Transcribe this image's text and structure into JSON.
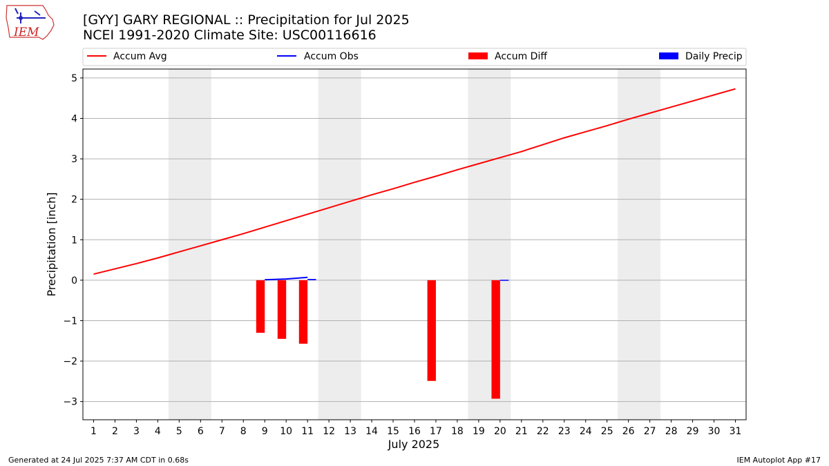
{
  "header": {
    "title_line1": "[GYY] GARY REGIONAL :: Precipitation for Jul 2025",
    "title_line2": "NCEI 1991-2020 Climate Site: USC00116616"
  },
  "logo": {
    "text": "IEM"
  },
  "footer": {
    "left": "Generated at 24 Jul 2025 7:37 AM CDT in 0.68s",
    "right": "IEM Autoplot App #17"
  },
  "colors": {
    "avg": "#ff0000",
    "obs": "#0000ff",
    "diff": "#ff0000",
    "daily": "#0000ff",
    "weekend": "#ededed",
    "grid": "#b0b0b0"
  },
  "chart_data": {
    "type": "bar",
    "xlabel": "July 2025",
    "ylabel": "Precipitation [inch]",
    "xlim": [
      0.5,
      31.5
    ],
    "ylim": [
      -3.45,
      5.22
    ],
    "xticks": [
      "1",
      "2",
      "3",
      "4",
      "5",
      "6",
      "7",
      "8",
      "9",
      "10",
      "11",
      "12",
      "13",
      "14",
      "15",
      "16",
      "17",
      "18",
      "19",
      "20",
      "21",
      "22",
      "23",
      "24",
      "25",
      "26",
      "27",
      "28",
      "29",
      "30",
      "31"
    ],
    "yticks": [
      {
        "v": 5,
        "label": "5"
      },
      {
        "v": 4,
        "label": "4"
      },
      {
        "v": 3,
        "label": "3"
      },
      {
        "v": 2,
        "label": "2"
      },
      {
        "v": 1,
        "label": "1"
      },
      {
        "v": 0,
        "label": "0"
      },
      {
        "v": -1,
        "label": "−1"
      },
      {
        "v": -2,
        "label": "−2"
      },
      {
        "v": -3,
        "label": "−3"
      }
    ],
    "weekend_spans": [
      [
        4.5,
        6.5
      ],
      [
        11.5,
        13.5
      ],
      [
        18.5,
        20.5
      ],
      [
        25.5,
        27.5
      ]
    ],
    "legend": {
      "placement": "top",
      "entries": [
        {
          "label": "Accum Avg",
          "kind": "line",
          "color": "#ff0000"
        },
        {
          "label": "Accum Obs",
          "kind": "line",
          "color": "#0000ff"
        },
        {
          "label": "Accum Diff",
          "kind": "bar",
          "color": "#ff0000"
        },
        {
          "label": "Daily Precip",
          "kind": "bar",
          "color": "#0000ff"
        }
      ]
    },
    "series": [
      {
        "name": "Accum Avg",
        "type": "line",
        "x": [
          1,
          2,
          3,
          4,
          5,
          6,
          7,
          8,
          9,
          10,
          11,
          12,
          13,
          14,
          15,
          16,
          17,
          18,
          19,
          20,
          21,
          22,
          23,
          24,
          25,
          26,
          27,
          28,
          29,
          30,
          31
        ],
        "values": [
          0.15,
          0.28,
          0.41,
          0.55,
          0.7,
          0.85,
          1.0,
          1.15,
          1.31,
          1.47,
          1.63,
          1.79,
          1.95,
          2.11,
          2.26,
          2.42,
          2.57,
          2.73,
          2.88,
          3.03,
          3.18,
          3.35,
          3.52,
          3.67,
          3.82,
          3.98,
          4.13,
          4.28,
          4.43,
          4.58,
          4.73
        ]
      },
      {
        "name": "Accum Obs",
        "type": "line",
        "x": [
          9,
          10,
          11
        ],
        "values": [
          0.01,
          0.03,
          0.07
        ]
      },
      {
        "name": "Accum Diff",
        "type": "bar",
        "x": [
          9,
          10,
          11,
          17,
          20
        ],
        "values": [
          -1.3,
          -1.45,
          -1.57,
          -2.49,
          -2.93
        ]
      },
      {
        "name": "Daily Precip",
        "type": "bar",
        "x": [
          11,
          20
        ],
        "values": [
          0.03,
          0.01
        ]
      }
    ]
  }
}
